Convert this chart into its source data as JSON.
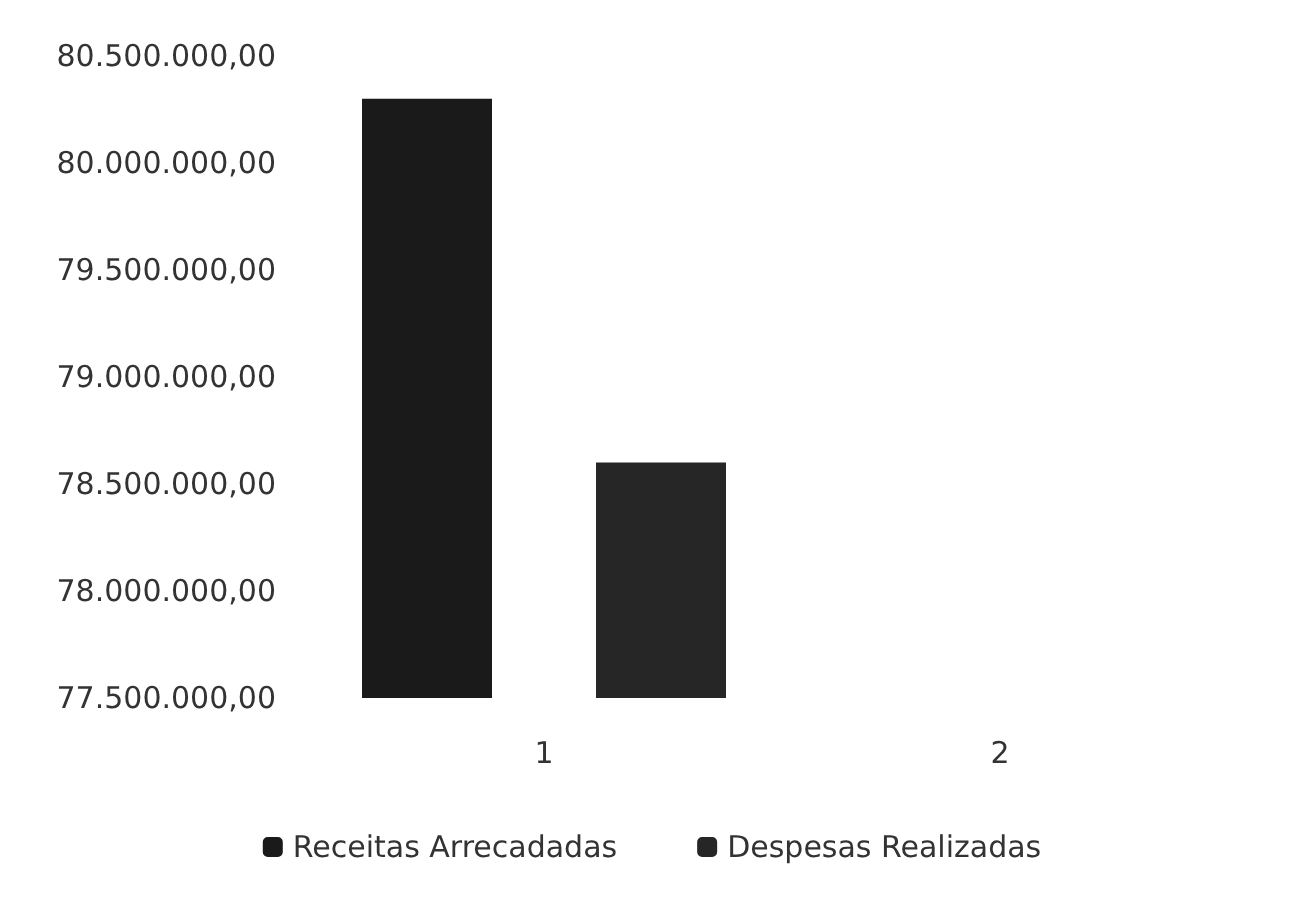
{
  "chart_data": {
    "type": "bar",
    "categories": [
      "1",
      "2"
    ],
    "series": [
      {
        "name": "Receitas Arrecadadas",
        "color": "#1a1a1a",
        "values": [
          80300000,
          null
        ]
      },
      {
        "name": "Despesas Realizadas",
        "color": "#262626",
        "values": [
          78600000,
          null
        ]
      }
    ],
    "ylim": [
      77500000,
      80500000
    ],
    "yticks": [
      {
        "value": 77500000,
        "label": "77.500.000,00"
      },
      {
        "value": 78000000,
        "label": "78.000.000,00"
      },
      {
        "value": 78500000,
        "label": "78.500.000,00"
      },
      {
        "value": 79000000,
        "label": "79.000.000,00"
      },
      {
        "value": 79500000,
        "label": "79.500.000,00"
      },
      {
        "value": 80000000,
        "label": "80.000.000,00"
      },
      {
        "value": 80500000,
        "label": "80.500.000,00"
      }
    ],
    "grid": false,
    "legend": "bottom"
  }
}
